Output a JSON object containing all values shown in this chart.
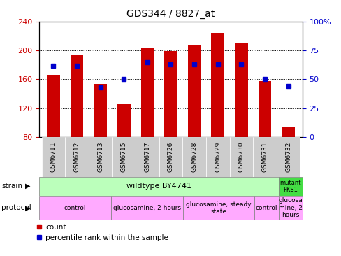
{
  "title": "GDS344 / 8827_at",
  "samples": [
    "GSM6711",
    "GSM6712",
    "GSM6713",
    "GSM6715",
    "GSM6717",
    "GSM6726",
    "GSM6728",
    "GSM6729",
    "GSM6730",
    "GSM6731",
    "GSM6732"
  ],
  "counts": [
    166,
    194,
    154,
    126,
    204,
    199,
    208,
    225,
    210,
    158,
    93
  ],
  "percentile_ranks": [
    62,
    62,
    43,
    50,
    65,
    63,
    63,
    63,
    63,
    50,
    44
  ],
  "ylim_left": [
    80,
    240
  ],
  "ylim_right": [
    0,
    100
  ],
  "yticks_left": [
    80,
    120,
    160,
    200,
    240
  ],
  "yticks_right": [
    0,
    25,
    50,
    75,
    100
  ],
  "bar_color": "#cc0000",
  "dot_color": "#0000cc",
  "bar_bottom": 80,
  "strain_wildtype": "wildtype BY4741",
  "strain_mutant": "mutant\nFKS1",
  "strain_wildtype_color": "#bbffbb",
  "strain_mutant_color": "#44dd44",
  "protocol_color": "#ffaaff",
  "left_axis_color": "#cc0000",
  "right_axis_color": "#0000cc",
  "legend_count_label": "count",
  "legend_pct_label": "percentile rank within the sample",
  "grid_dotted_at": [
    120,
    160,
    200
  ],
  "xtick_bg_color": "#cccccc"
}
